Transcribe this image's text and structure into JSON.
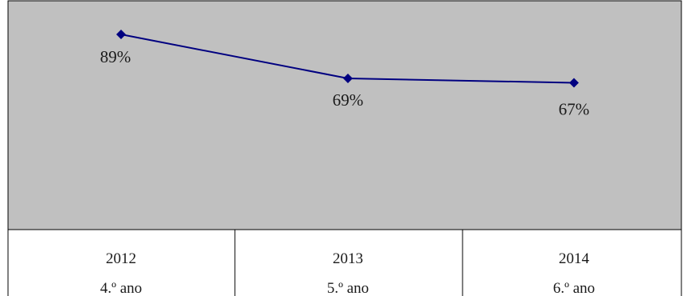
{
  "chart_data": {
    "type": "line",
    "categories": [
      {
        "year": "2012",
        "grade": "4.º ano"
      },
      {
        "year": "2013",
        "grade": "5.º ano"
      },
      {
        "year": "2014",
        "grade": "6.º ano"
      }
    ],
    "series": [
      {
        "values": [
          89,
          69,
          67
        ],
        "value_labels": [
          "89%",
          "69%",
          "67%"
        ],
        "color": "#000080"
      }
    ],
    "ylim": [
      0,
      100
    ],
    "grid": false,
    "plot_background": "#c0c0c0",
    "border_color": "#000000"
  }
}
